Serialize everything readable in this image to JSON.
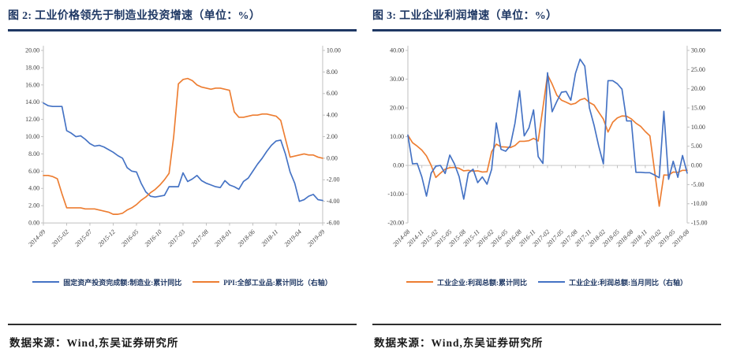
{
  "figures": [
    {
      "title": "图 2:  工业价格领先于制造业投资增速（单位：%）",
      "source": "数据来源：Wind,东吴证券研究所"
    },
    {
      "title": "图 3:  工业企业利润增速（单位：%）",
      "source": "数据来源：Wind,东吴证券研究所"
    }
  ],
  "colors": {
    "title_navy": "#1F3864",
    "series_blue": "#4472C4",
    "series_orange": "#ED7D31",
    "axis_gray": "#BFBFBF",
    "tick_text": "#404040"
  },
  "chart_data": [
    {
      "type": "line",
      "title": "图 2: 工业价格领先于制造业投资增速（单位：%）",
      "x_tick_labels": [
        "2014-09",
        "2015-02",
        "2015-07",
        "2015-12",
        "2016-05",
        "2016-10",
        "2017-03",
        "2017-08",
        "2018-01",
        "2018-06",
        "2018-11",
        "2019-04",
        "2019-09"
      ],
      "x_tick_every": 5,
      "left_axis": {
        "min": 0,
        "max": 20,
        "step": 2,
        "tick_labels": [
          "20.00",
          "18.00",
          "16.00",
          "14.00",
          "12.00",
          "10.00",
          "8.00",
          "6.00",
          "4.00",
          "2.00",
          "0.00"
        ]
      },
      "right_axis": {
        "min": -6,
        "max": 10,
        "step": 2,
        "tick_labels": [
          "10.00",
          "8.00",
          "6.00",
          "4.00",
          "2.00",
          "0.00",
          "-2.00",
          "-4.00",
          "-6.00"
        ]
      },
      "baseline": 0,
      "grid": false,
      "legend_position": "bottom",
      "series": [
        {
          "name": "固定资产投资完成额:制造业:累计同比",
          "axis": "left",
          "color": "#4472C4",
          "values": [
            13.9,
            13.6,
            13.5,
            13.5,
            13.5,
            10.7,
            10.4,
            10.0,
            10.1,
            9.7,
            9.2,
            8.9,
            9.0,
            8.8,
            8.5,
            8.2,
            7.8,
            7.5,
            6.4,
            6.0,
            5.9,
            4.6,
            3.6,
            3.1,
            3.0,
            3.1,
            3.2,
            4.2,
            4.2,
            4.2,
            5.8,
            4.8,
            5.1,
            5.5,
            4.9,
            4.6,
            4.4,
            4.2,
            4.1,
            4.9,
            4.4,
            4.2,
            3.9,
            4.8,
            5.2,
            6.0,
            6.8,
            7.5,
            8.3,
            9.0,
            9.5,
            9.6,
            8.0,
            5.9,
            4.6,
            2.5,
            2.7,
            3.1,
            3.3,
            2.7,
            2.6
          ]
        },
        {
          "name": "PPI:全部工业品:累计同比（右轴）",
          "axis": "right",
          "color": "#ED7D31",
          "values": [
            -1.6,
            -1.6,
            -1.7,
            -1.9,
            -3.3,
            -4.6,
            -4.6,
            -4.6,
            -4.6,
            -4.7,
            -4.7,
            -4.7,
            -4.8,
            -4.9,
            -5.0,
            -5.2,
            -5.2,
            -5.1,
            -4.8,
            -4.6,
            -4.3,
            -3.9,
            -3.6,
            -3.2,
            -2.9,
            -2.5,
            -2.0,
            -1.4,
            2.0,
            6.9,
            7.3,
            7.4,
            7.2,
            6.8,
            6.6,
            6.5,
            6.4,
            6.5,
            6.5,
            6.4,
            6.3,
            4.3,
            3.8,
            3.8,
            3.9,
            4.0,
            4.0,
            4.1,
            4.1,
            4.0,
            3.9,
            3.5,
            1.8,
            0.1,
            0.2,
            0.3,
            0.4,
            0.3,
            0.3,
            0.1,
            0.0
          ]
        }
      ]
    },
    {
      "type": "line",
      "title": "图 3: 工业企业利润增速（单位：%）",
      "x_tick_labels": [
        "2014-08",
        "2014-11",
        "2015-02",
        "2015-05",
        "2015-08",
        "2015-11",
        "2016-02",
        "2016-05",
        "2016-08",
        "2016-11",
        "2017-02",
        "2017-05",
        "2017-08",
        "2017-11",
        "2018-02",
        "2018-05",
        "2018-08",
        "2018-11",
        "2019-02",
        "2019-05",
        "2019-08"
      ],
      "x_tick_every": 3,
      "left_axis": {
        "min": -20,
        "max": 40,
        "step": 10,
        "tick_labels": [
          "40.00",
          "30.00",
          "20.00",
          "10.00",
          "0.00",
          "-10.00",
          "-20.00"
        ]
      },
      "right_axis": {
        "min": -15,
        "max": 30,
        "step": 5,
        "tick_labels": [
          "30.00",
          "25.00",
          "20.00",
          "15.00",
          "10.00",
          "5.00",
          "0.00",
          "-5.00",
          "-10.00",
          "-15.00"
        ]
      },
      "baseline": 0,
      "grid": false,
      "legend_position": "bottom",
      "series": [
        {
          "name": "工业企业:利润总额:累计同比",
          "axis": "left",
          "color": "#ED7D31",
          "values": [
            10.5,
            7.9,
            6.7,
            5.3,
            3.3,
            0.0,
            -4.2,
            -2.7,
            -1.3,
            -0.8,
            -0.7,
            -1.0,
            -1.9,
            -1.7,
            -2.0,
            -1.9,
            -2.3,
            -2.2,
            4.8,
            7.4,
            6.5,
            6.4,
            6.2,
            6.9,
            8.4,
            8.4,
            8.6,
            9.4,
            8.5,
            20.0,
            31.5,
            28.3,
            24.4,
            22.7,
            22.0,
            21.2,
            21.6,
            22.8,
            23.3,
            21.9,
            21.0,
            18.5,
            16.1,
            11.6,
            15.0,
            16.5,
            17.2,
            17.1,
            16.2,
            14.7,
            13.6,
            11.8,
            10.3,
            -2.0,
            -14.2,
            -3.3,
            -3.4,
            -2.3,
            -2.4,
            -1.7,
            -1.7
          ]
        },
        {
          "name": "工业企业:利润总额:当月同比（右轴）",
          "axis": "right",
          "color": "#4472C4",
          "values": [
            7.9,
            0.4,
            0.5,
            -3.0,
            -8.0,
            -2.0,
            -0.2,
            0.0,
            -2.1,
            2.7,
            0.4,
            -2.9,
            -8.8,
            -2.0,
            -1.0,
            -4.5,
            -3.0,
            -4.9,
            -1.0,
            11.1,
            4.2,
            3.7,
            5.1,
            11.0,
            19.5,
            7.7,
            9.8,
            14.5,
            2.3,
            0.5,
            24.2,
            14.0,
            16.7,
            19.1,
            19.3,
            17.0,
            24.0,
            27.7,
            25.9,
            15.0,
            10.5,
            5.0,
            0.4,
            22.1,
            22.1,
            21.3,
            19.9,
            11.6,
            11.6,
            -1.8,
            -1.8,
            -1.9,
            -1.9,
            -2.5,
            -3.2,
            14.1,
            -3.6,
            1.1,
            -3.1,
            2.6,
            -2.0
          ]
        }
      ]
    }
  ]
}
